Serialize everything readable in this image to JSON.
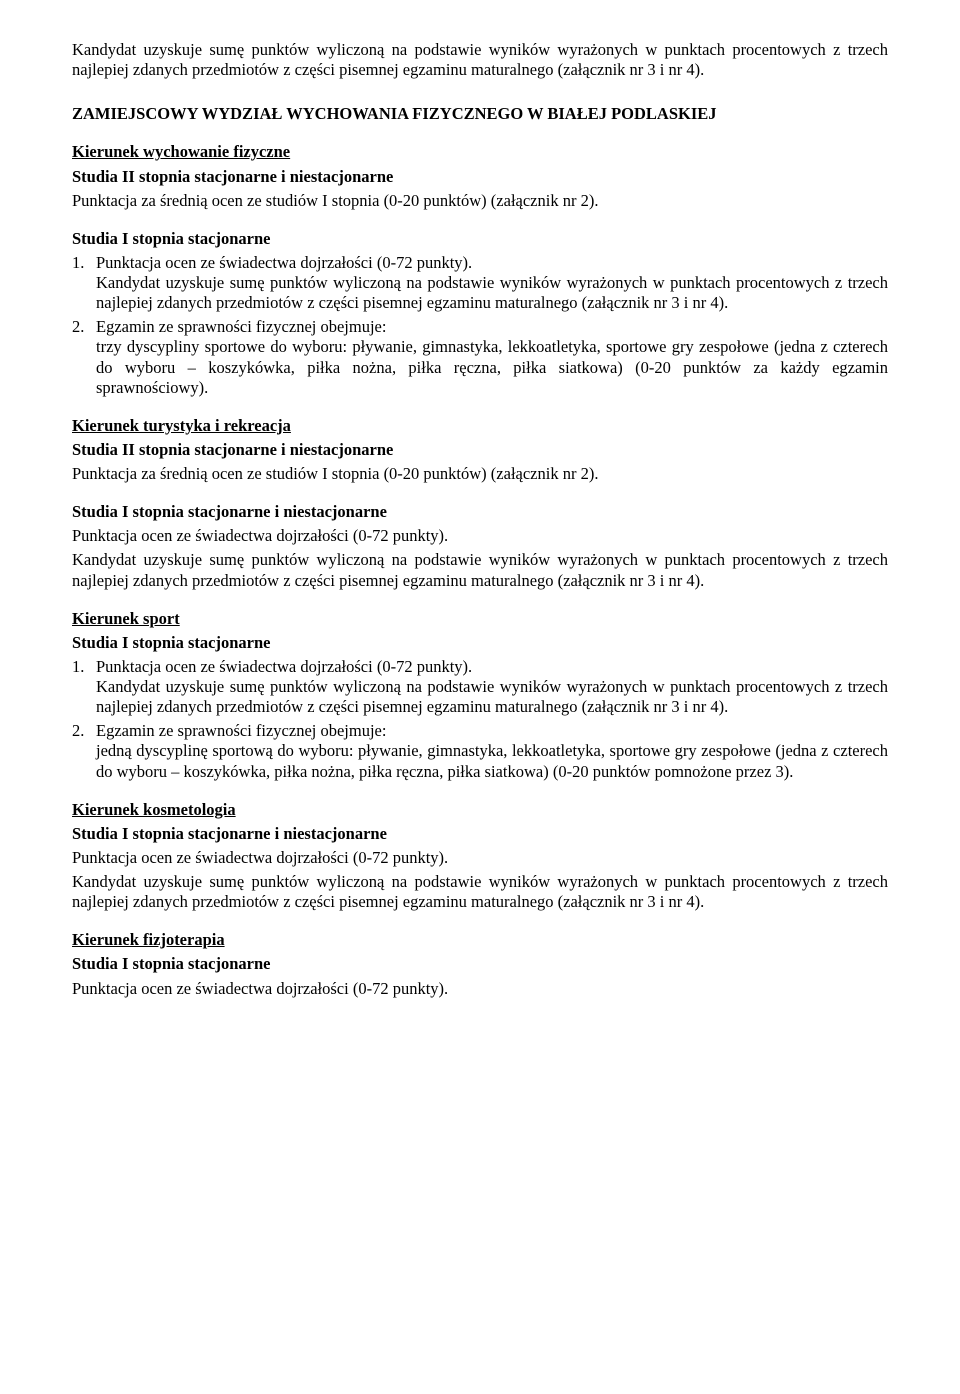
{
  "intro": {
    "p1": "Kandydat uzyskuje sumę punktów wyliczoną na podstawie wyników wyrażonych w punktach procentowych z trzech najlepiej zdanych przedmiotów z części pisemnej egzaminu maturalnego (załącznik nr 3 i nr 4)."
  },
  "heading_main": "ZAMIEJSCOWY WYDZIAŁ WYCHOWANIA FIZYCZNEGO W BIAŁEJ PODLASKIEJ",
  "wf": {
    "title": "Kierunek wychowanie fizyczne",
    "line2": "Studia II stopnia stacjonarne i niestacjonarne",
    "line3": "Punktacja za średnią ocen ze studiów I stopnia (0-20 punktów) (załącznik nr 2).",
    "line4": "Studia I stopnia stacjonarne",
    "item1_num": "1.",
    "item1_text": "Punktacja ocen ze świadectwa dojrzałości (0-72 punkty).",
    "item1_body": "Kandydat uzyskuje sumę punktów wyliczoną na podstawie wyników wyrażonych w punktach procentowych z trzech najlepiej zdanych przedmiotów z części pisemnej egzaminu maturalnego (załącznik nr 3 i nr 4).",
    "item2_num": "2.",
    "item2_text": "Egzamin ze sprawności fizycznej obejmuje:",
    "item2_body": "trzy dyscypliny sportowe do wyboru: pływanie, gimnastyka, lekkoatletyka, sportowe gry zespołowe (jedna z czterech do wyboru – koszykówka, piłka nożna, piłka ręczna, piłka siatkowa) (0-20 punktów za każdy egzamin sprawnościowy)."
  },
  "tir": {
    "title": "Kierunek turystyka i rekreacja",
    "line2": "Studia II stopnia stacjonarne i niestacjonarne",
    "line3": "Punktacja za średnią ocen ze studiów I stopnia (0-20 punktów) (załącznik nr 2).",
    "line4": "Studia I stopnia stacjonarne i niestacjonarne",
    "line5": "Punktacja ocen ze świadectwa dojrzałości (0-72 punkty).",
    "line6": "Kandydat uzyskuje sumę punktów wyliczoną na podstawie wyników wyrażonych w punktach procentowych z trzech najlepiej zdanych przedmiotów z części pisemnej egzaminu maturalnego (załącznik nr 3 i nr 4)."
  },
  "sport": {
    "title": "Kierunek sport",
    "line2": "Studia I stopnia stacjonarne",
    "item1_num": "1.",
    "item1_text": "Punktacja ocen ze świadectwa dojrzałości (0-72 punkty).",
    "item1_body": "Kandydat uzyskuje sumę punktów wyliczoną na podstawie wyników wyrażonych w punktach procentowych z trzech najlepiej zdanych przedmiotów z części pisemnej egzaminu maturalnego (załącznik nr 3 i nr 4).",
    "item2_num": "2.",
    "item2_text": "Egzamin ze sprawności fizycznej obejmuje:",
    "item2_body": "jedną dyscyplinę sportową do wyboru: pływanie, gimnastyka, lekkoatletyka, sportowe gry zespołowe (jedna z czterech do wyboru – koszykówka, piłka nożna, piłka ręczna, piłka siatkowa) (0-20 punktów pomnożone przez 3)."
  },
  "kosm": {
    "title": "Kierunek kosmetologia",
    "line2": "Studia I stopnia stacjonarne i niestacjonarne",
    "line3": "Punktacja ocen ze świadectwa dojrzałości (0-72 punkty).",
    "line4": "Kandydat uzyskuje sumę punktów wyliczoną na podstawie wyników wyrażonych w punktach procentowych z trzech najlepiej zdanych przedmiotów z części pisemnej egzaminu maturalnego (załącznik nr 3 i nr 4)."
  },
  "fizjo": {
    "title": "Kierunek fizjoterapia",
    "line2": "Studia I stopnia stacjonarne",
    "line3": "Punktacja ocen ze świadectwa dojrzałości (0-72 punkty)."
  }
}
